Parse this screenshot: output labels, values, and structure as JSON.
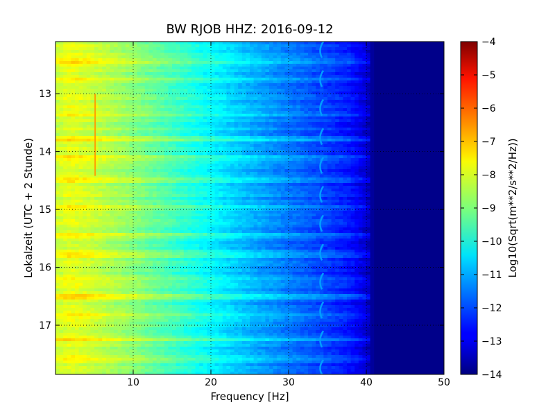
{
  "chart_data": {
    "type": "heatmap",
    "title": "BW RJOB HHZ: 2016-09-12",
    "xlabel": "Frequency [Hz]",
    "ylabel": "Lokalzeit (UTC + 2 Stunde)",
    "xlim": [
      0,
      50
    ],
    "ylim": [
      12.1,
      17.85
    ],
    "y_inverted": true,
    "x_ticks": [
      10,
      20,
      30,
      40,
      50
    ],
    "x_tick_labels": [
      "10",
      "20",
      "30",
      "40",
      "50"
    ],
    "y_ticks": [
      13,
      14,
      15,
      16,
      17
    ],
    "y_tick_labels": [
      "13",
      "14",
      "15",
      "16",
      "17"
    ],
    "grid": true,
    "colormap": "jet",
    "colorbar": {
      "label": "Log10(Sqrt(m**2/s**2/Hz))",
      "range": [
        -14,
        -4
      ],
      "ticks": [
        -4,
        -5,
        -6,
        -7,
        -8,
        -9,
        -10,
        -11,
        -12,
        -13,
        -14
      ],
      "tick_labels": [
        "−4",
        "−5",
        "−6",
        "−7",
        "−8",
        "−9",
        "−10",
        "−11",
        "−12",
        "−13",
        "−14"
      ]
    },
    "frequency_profile": [
      {
        "freq": 0,
        "value": -8.3
      },
      {
        "freq": 2,
        "value": -8.0
      },
      {
        "freq": 5,
        "value": -8.3
      },
      {
        "freq": 10,
        "value": -8.9
      },
      {
        "freq": 15,
        "value": -9.6
      },
      {
        "freq": 20,
        "value": -10.3
      },
      {
        "freq": 25,
        "value": -11.0
      },
      {
        "freq": 30,
        "value": -11.6
      },
      {
        "freq": 35,
        "value": -12.2
      },
      {
        "freq": 38,
        "value": -12.6
      },
      {
        "freq": 40,
        "value": -13.2
      },
      {
        "freq": 41,
        "value": -13.9
      },
      {
        "freq": 50,
        "value": -13.9
      }
    ],
    "bright_bands": [
      {
        "time": 12.45,
        "boost": 1.0
      },
      {
        "time": 12.75,
        "boost": 0.6
      },
      {
        "time": 13.35,
        "boost": 0.6
      },
      {
        "time": 13.8,
        "boost": 0.9
      },
      {
        "time": 14.1,
        "boost": 0.5
      },
      {
        "time": 14.5,
        "boost": 0.9
      },
      {
        "time": 14.95,
        "boost": 0.6
      },
      {
        "time": 15.45,
        "boost": 0.7
      },
      {
        "time": 15.8,
        "boost": 0.8
      },
      {
        "time": 16.2,
        "boost": 0.6
      },
      {
        "time": 16.5,
        "boost": 1.0
      },
      {
        "time": 16.85,
        "boost": 0.6
      },
      {
        "time": 17.25,
        "boost": 0.7
      },
      {
        "time": 17.55,
        "boost": 0.6
      }
    ],
    "features": [
      {
        "name": "narrow-line-5hz",
        "freq": 5.1,
        "time_start": 13.0,
        "time_end": 14.42,
        "value": -6.8
      },
      {
        "name": "periodic-arcs-34hz",
        "freq_center": 34.2,
        "period_hours": 0.5,
        "first_time": 12.1,
        "value": -11.2
      }
    ]
  }
}
